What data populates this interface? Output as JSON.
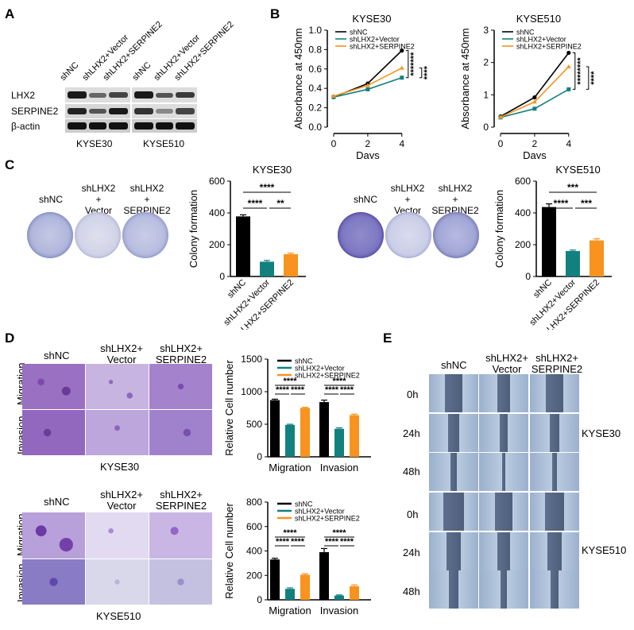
{
  "panels": {
    "A": "A",
    "B": "B",
    "C": "C",
    "D": "D",
    "E": "E"
  },
  "western": {
    "lane_labels": [
      "shNC",
      "shLHX2+Vector",
      "shLHX2+SERPINE2",
      "shNC",
      "shLHX2+Vector",
      "shLHX2+SERPINE2"
    ],
    "row_labels": [
      "LHX2",
      "SERPINE2",
      "β-actin"
    ],
    "cell_lines": [
      "KYSE30",
      "KYSE510"
    ]
  },
  "colony": {
    "left_labels": [
      "shNC",
      "shLHX2\n+\nVector",
      "shLHX2\n+\nSERPINE2"
    ],
    "right_labels": [
      "shNC",
      "shLHX2\n+\nVector",
      "shLHX2\n+\nSERPINE2"
    ]
  },
  "transwell": {
    "col_labels_top": [
      "shNC",
      "shLHX2+\nVector",
      "shLHX2+\nSERPINE2"
    ],
    "col_labels_bottom": [
      "shNC",
      "shLHX2+\nVector",
      "shLHX2+\nSERPINE2"
    ],
    "row_labels": [
      "Migration",
      "Invasion"
    ],
    "line_top": "KYSE30",
    "line_bottom": "KYSE510"
  },
  "wound": {
    "col_labels": [
      "shNC",
      "shLHX2+\nVector",
      "shLHX2+\nSERPINE2"
    ],
    "time_labels": [
      "0h",
      "24h",
      "48h",
      "0h",
      "24h",
      "48h"
    ],
    "line_labels": [
      "KYSE30",
      "KYSE510"
    ]
  },
  "colors": {
    "shNC": "#000000",
    "vector": "#138080",
    "serpine2": "#F7931E"
  },
  "chart_data": [
    {
      "id": "B-left",
      "type": "line",
      "title": "KYSE30",
      "xlabel": "Days",
      "ylabel": "Absorbance at 450nm",
      "x": [
        0,
        2,
        4
      ],
      "xlim": [
        0,
        4
      ],
      "ylim": [
        0,
        1.0
      ],
      "yticks": [
        "0.0",
        "0.2",
        "0.4",
        "0.6",
        "0.8",
        "1.0"
      ],
      "xticks": [
        "0",
        "2",
        "4"
      ],
      "series": [
        {
          "name": "shNC",
          "values": [
            0.31,
            0.45,
            0.79
          ]
        },
        {
          "name": "shLHX2+Vector",
          "values": [
            0.31,
            0.39,
            0.51
          ]
        },
        {
          "name": "shLHX2+SERPINE2",
          "values": [
            0.32,
            0.43,
            0.61
          ]
        }
      ],
      "annotations": [
        "*******",
        "****"
      ]
    },
    {
      "id": "B-right",
      "type": "line",
      "title": "KYSE510",
      "xlabel": "Days",
      "ylabel": "Absorbance at 450nm",
      "x": [
        0,
        2,
        4
      ],
      "xlim": [
        0,
        4
      ],
      "ylim": [
        0,
        3
      ],
      "yticks": [
        "0",
        "1",
        "2",
        "3"
      ],
      "xticks": [
        "0",
        "2",
        "4"
      ],
      "series": [
        {
          "name": "shNC",
          "values": [
            0.33,
            0.92,
            2.3
          ]
        },
        {
          "name": "shLHX2+Vector",
          "values": [
            0.3,
            0.57,
            1.17
          ]
        },
        {
          "name": "shLHX2+SERPINE2",
          "values": [
            0.31,
            0.78,
            1.87
          ]
        }
      ],
      "annotations": [
        "********",
        "****"
      ]
    },
    {
      "id": "C-left",
      "type": "bar",
      "title": "KYSE30",
      "ylabel": "Colony  formation",
      "categories": [
        "shNC",
        "shLHX2+Vector",
        "shLHX2+SERPINE2"
      ],
      "values": [
        378,
        93,
        140
      ],
      "errors": [
        10,
        8,
        7
      ],
      "ylim": [
        0,
        600
      ],
      "yticks": [
        "0",
        "200",
        "400",
        "600"
      ],
      "annotations": [
        "****",
        "****",
        "**"
      ]
    },
    {
      "id": "C-right",
      "type": "bar",
      "title": "KYSE510",
      "ylabel": "Colony  formation",
      "categories": [
        "shNC",
        "shLHX2+Vector",
        "shLHX2+SERPINE2"
      ],
      "values": [
        437,
        160,
        227
      ],
      "errors": [
        20,
        6,
        10
      ],
      "ylim": [
        0,
        600
      ],
      "yticks": [
        "0",
        "200",
        "400",
        "600"
      ],
      "annotations": [
        "***",
        "****",
        "***"
      ]
    },
    {
      "id": "D-top",
      "type": "bar",
      "ylabel": "Relative Cell number",
      "categories": [
        "Migration",
        "Invasion"
      ],
      "series": [
        {
          "name": "shNC",
          "values": [
            870,
            840
          ],
          "errors": [
            15,
            30
          ]
        },
        {
          "name": "shLHX2+Vector",
          "values": [
            490,
            430
          ],
          "errors": [
            10,
            15
          ]
        },
        {
          "name": "shLHX2+SERPINE2",
          "values": [
            750,
            640
          ],
          "errors": [
            10,
            15
          ]
        }
      ],
      "ylim": [
        0,
        1500
      ],
      "yticks": [
        "0",
        "500",
        "1000",
        "1500"
      ],
      "annotations": [
        "****",
        "****",
        "****",
        "****",
        "****",
        "****"
      ]
    },
    {
      "id": "D-bottom",
      "type": "bar",
      "ylabel": "Relative Cell number",
      "categories": [
        "Migration",
        "Invasion"
      ],
      "series": [
        {
          "name": "shNC",
          "values": [
            330,
            390
          ],
          "errors": [
            10,
            30
          ]
        },
        {
          "name": "shLHX2+Vector",
          "values": [
            90,
            35
          ],
          "errors": [
            8,
            5
          ]
        },
        {
          "name": "shLHX2+SERPINE2",
          "values": [
            205,
            112
          ],
          "errors": [
            8,
            10
          ]
        }
      ],
      "ylim": [
        0,
        800
      ],
      "yticks": [
        "0",
        "200",
        "400",
        "600",
        "800"
      ],
      "annotations": [
        "****",
        "****",
        "****",
        "****",
        "****",
        "****"
      ]
    }
  ]
}
